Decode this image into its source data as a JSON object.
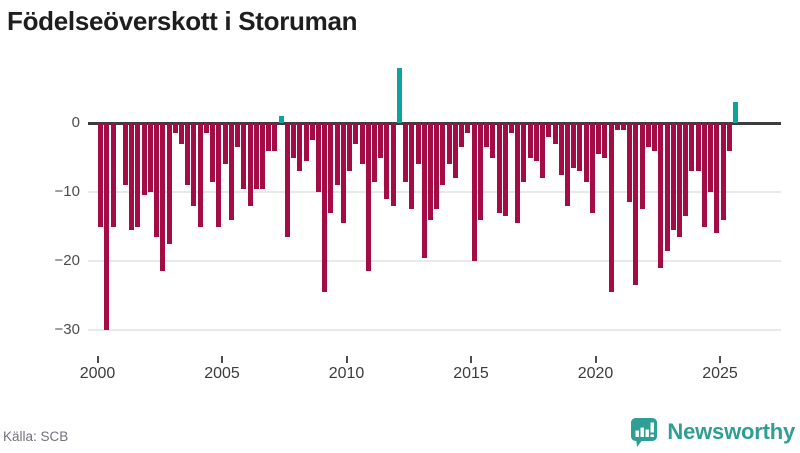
{
  "header": {
    "title": "Födelseöverskott i Storuman"
  },
  "footer": {
    "source_label": "Källa: SCB",
    "brand_name": "Newsworthy"
  },
  "colors": {
    "negative_bar": "#a30c45",
    "positive_bar": "#0ba3a4",
    "zero_line": "#3d3d3d",
    "gridline": "#e9e9e9",
    "axis_text": "#4d4d4d",
    "title_text": "#1e1e1e",
    "source_text": "#71717a",
    "brand_teal": "#2f9e95"
  },
  "chart_data": {
    "type": "bar",
    "title": "Födelseöverskott i Storuman",
    "frequency": "quarterly",
    "x_start": "2000-Q1",
    "x_end": "2025-Q3",
    "x_ticks": [
      2000,
      2005,
      2010,
      2015,
      2020,
      2025
    ],
    "y_ticks": [
      0,
      -10,
      -20,
      -30
    ],
    "y_tick_labels": [
      "0",
      "−10",
      "−20",
      "−30"
    ],
    "ylim": [
      -32,
      9
    ],
    "grid": "horizontal",
    "legend": "none",
    "values": [
      -15,
      -30,
      -15,
      0,
      -9,
      -15.5,
      -15,
      -10.5,
      -10,
      -16.5,
      -21.5,
      -17.5,
      -1.5,
      -3,
      -9,
      -12,
      -15,
      -1.5,
      -8.5,
      -15,
      -6,
      -14,
      -3.5,
      -9.5,
      -12,
      -9.5,
      -9.5,
      -4,
      -4,
      1,
      -16.5,
      -5,
      -7,
      -5.5,
      -2.5,
      -10,
      -24.5,
      -13,
      -9,
      -14.5,
      -7,
      -3,
      -6,
      -21.5,
      -8.5,
      -5,
      -11,
      -12,
      8,
      -8.5,
      -12.5,
      -6,
      -19.5,
      -14,
      -12.5,
      -9,
      -6,
      -8,
      -3.5,
      -1.5,
      -20,
      -14,
      -3.5,
      -5,
      -13,
      -13.5,
      -1.5,
      -14.5,
      -8.5,
      -5,
      -5.5,
      -8,
      -2,
      -3,
      -7.5,
      -12,
      -6.5,
      -7,
      -8.5,
      -13,
      -4.5,
      -5,
      -24.5,
      -1,
      -1,
      -11.5,
      -23.5,
      -12.5,
      -3.5,
      -4,
      -21,
      -18.5,
      -15.5,
      -16.5,
      -13.5,
      -7,
      -7,
      -15,
      -10,
      -16,
      -14,
      -4,
      3
    ]
  }
}
